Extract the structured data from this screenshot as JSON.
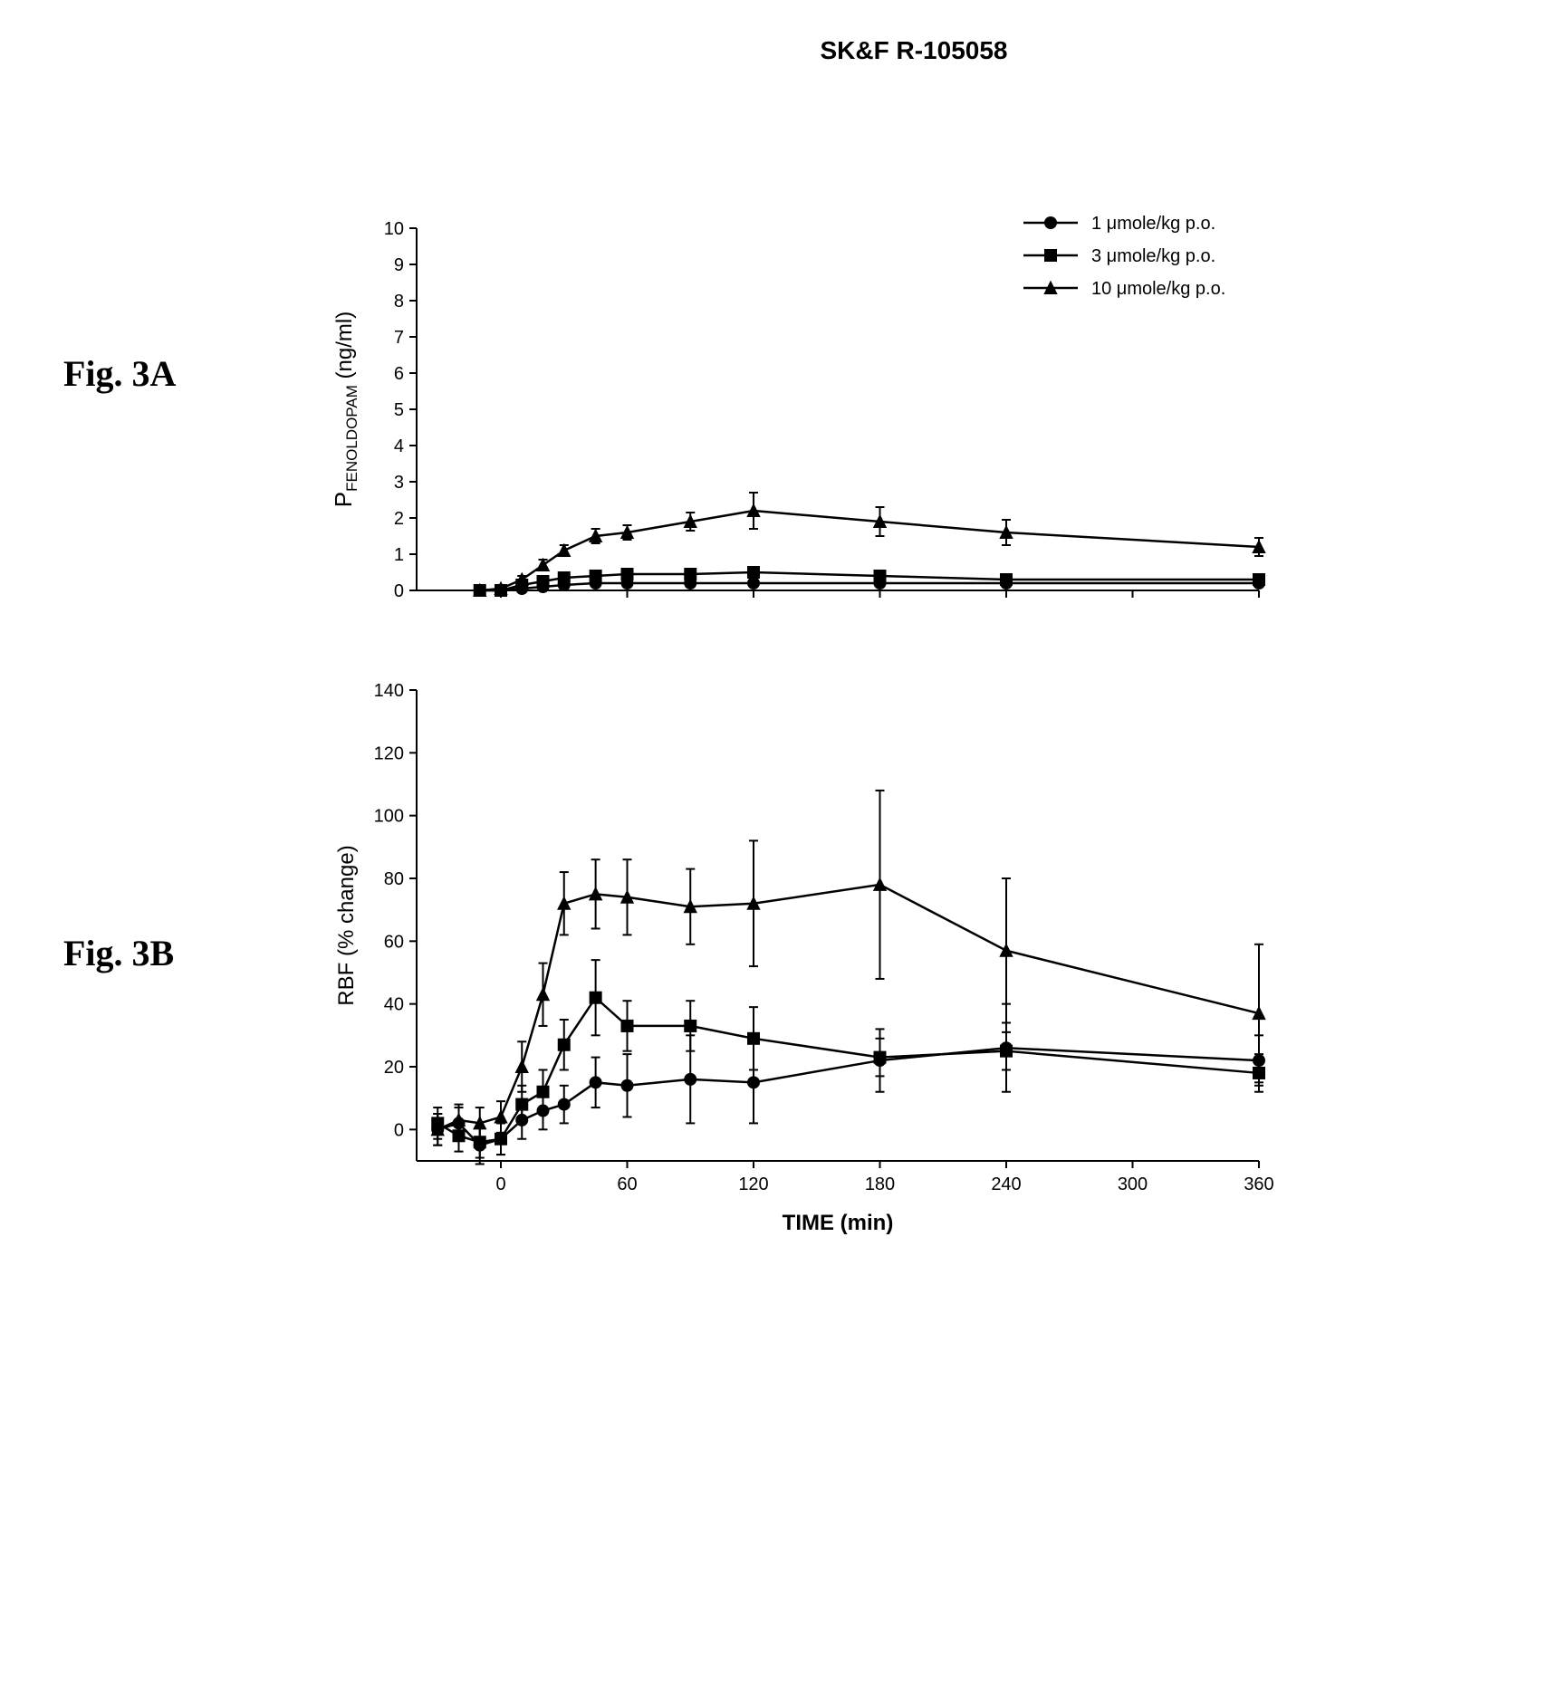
{
  "title": "SK&F R-105058",
  "figures": {
    "a": {
      "label": "Fig. 3A"
    },
    "b": {
      "label": "Fig. 3B"
    }
  },
  "xaxis": {
    "label": "TIME (min)",
    "min": -40,
    "max": 360,
    "ticks": [
      0,
      60,
      120,
      180,
      240,
      300,
      360
    ],
    "label_fontsize": 24,
    "tick_fontsize": 20
  },
  "chartA": {
    "type": "line-errorbar",
    "ylabel": "P_FENOLDOPAM (ng/ml)",
    "ylabel_prefix": "P",
    "ylabel_sub": "FENOLDOPAM",
    "ylabel_unit": "(ng/ml)",
    "ylim": [
      0,
      10
    ],
    "yticks": [
      0,
      1,
      2,
      3,
      4,
      5,
      6,
      7,
      8,
      9,
      10
    ],
    "background_color": "#ffffff",
    "line_color": "#000000",
    "marker_size": 7,
    "line_width": 2.5,
    "error_cap_width": 10,
    "legend": {
      "position": "top-right",
      "items": [
        {
          "label": "1 μmole/kg p.o.",
          "marker": "circle"
        },
        {
          "label": "3 μmole/kg p.o.",
          "marker": "square"
        },
        {
          "label": "10 μmole/kg p.o.",
          "marker": "triangle"
        }
      ]
    },
    "series": [
      {
        "name": "1 μmole/kg p.o.",
        "marker": "circle",
        "x": [
          -10,
          0,
          10,
          20,
          30,
          45,
          60,
          90,
          120,
          180,
          240,
          360
        ],
        "y": [
          0.0,
          0.0,
          0.05,
          0.1,
          0.15,
          0.2,
          0.2,
          0.2,
          0.2,
          0.2,
          0.2,
          0.2
        ],
        "err": [
          0.05,
          0.05,
          0.05,
          0.05,
          0.05,
          0.05,
          0.05,
          0.05,
          0.05,
          0.05,
          0.05,
          0.05
        ]
      },
      {
        "name": "3 μmole/kg p.o.",
        "marker": "square",
        "x": [
          -10,
          0,
          10,
          20,
          30,
          45,
          60,
          90,
          120,
          180,
          240,
          360
        ],
        "y": [
          0.0,
          0.0,
          0.15,
          0.25,
          0.35,
          0.4,
          0.45,
          0.45,
          0.5,
          0.4,
          0.3,
          0.3
        ],
        "err": [
          0.05,
          0.05,
          0.08,
          0.1,
          0.1,
          0.12,
          0.12,
          0.12,
          0.15,
          0.1,
          0.1,
          0.1
        ]
      },
      {
        "name": "10 μmole/kg p.o.",
        "marker": "triangle",
        "x": [
          -10,
          0,
          10,
          20,
          30,
          45,
          60,
          90,
          120,
          180,
          240,
          360
        ],
        "y": [
          0.0,
          0.05,
          0.3,
          0.7,
          1.1,
          1.5,
          1.6,
          1.9,
          2.2,
          1.9,
          1.6,
          1.2
        ],
        "err": [
          0.05,
          0.05,
          0.1,
          0.15,
          0.15,
          0.2,
          0.2,
          0.25,
          0.5,
          0.4,
          0.35,
          0.25
        ]
      }
    ]
  },
  "chartB": {
    "type": "line-errorbar",
    "ylabel": "RBF (% change)",
    "ylim": [
      -10,
      140
    ],
    "yticks": [
      0,
      20,
      40,
      60,
      80,
      100,
      120,
      140
    ],
    "background_color": "#ffffff",
    "line_color": "#000000",
    "marker_size": 7,
    "line_width": 2.5,
    "error_cap_width": 10,
    "series": [
      {
        "name": "1 μmole/kg p.o.",
        "marker": "circle",
        "x": [
          -30,
          -20,
          -10,
          0,
          10,
          20,
          30,
          45,
          60,
          90,
          120,
          180,
          240,
          360
        ],
        "y": [
          0,
          2,
          -5,
          -3,
          3,
          6,
          8,
          15,
          14,
          16,
          15,
          22,
          26,
          22
        ],
        "err": [
          5,
          5,
          6,
          5,
          6,
          6,
          6,
          8,
          10,
          14,
          13,
          10,
          14,
          8
        ]
      },
      {
        "name": "3 μmole/kg p.o.",
        "marker": "square",
        "x": [
          -30,
          -20,
          -10,
          0,
          10,
          20,
          30,
          45,
          60,
          90,
          120,
          180,
          240,
          360
        ],
        "y": [
          2,
          -2,
          -4,
          -3,
          8,
          12,
          27,
          42,
          33,
          33,
          29,
          23,
          25,
          18
        ],
        "err": [
          5,
          5,
          5,
          5,
          6,
          7,
          8,
          12,
          8,
          8,
          10,
          6,
          6,
          6
        ]
      },
      {
        "name": "10 μmole/kg p.o.",
        "marker": "triangle",
        "x": [
          -30,
          -20,
          -10,
          0,
          10,
          20,
          30,
          45,
          60,
          90,
          120,
          180,
          240,
          360
        ],
        "y": [
          0,
          3,
          2,
          4,
          20,
          43,
          72,
          75,
          74,
          71,
          72,
          78,
          57,
          37
        ],
        "err": [
          5,
          5,
          5,
          5,
          8,
          10,
          10,
          11,
          12,
          12,
          20,
          30,
          23,
          22
        ]
      }
    ]
  },
  "style": {
    "axis_color": "#000000",
    "text_color": "#000000",
    "font_family": "Arial, sans-serif",
    "title_fontsize": 28,
    "figlabel_fontsize": 40,
    "figlabel_font_family": "Times New Roman, serif"
  }
}
